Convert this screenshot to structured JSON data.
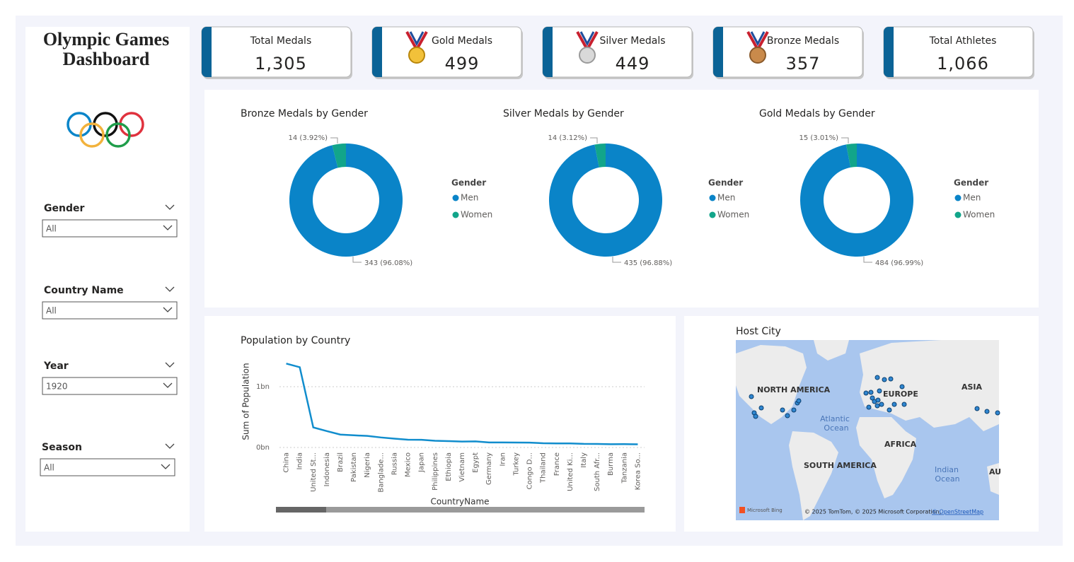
{
  "header": {
    "title": "Olympic Games Dashboard"
  },
  "kpis": [
    {
      "label": "Total Medals",
      "value": "1,305"
    },
    {
      "label": "Gold Medals",
      "value": "499"
    },
    {
      "label": "Silver Medals",
      "value": "449"
    },
    {
      "label": "Bronze Medals",
      "value": "357"
    },
    {
      "label": "Total Athletes",
      "value": "1,066"
    }
  ],
  "filters": [
    {
      "label": "Gender",
      "value": "All"
    },
    {
      "label": "Country Name",
      "value": "All"
    },
    {
      "label": "Year",
      "value": "1920"
    },
    {
      "label": "Season",
      "value": "All"
    }
  ],
  "chart_data": [
    {
      "type": "pie",
      "title": "Bronze Medals by Gender",
      "legend_title": "Gender",
      "categories": [
        "Men",
        "Women"
      ],
      "values": [
        343,
        14
      ],
      "value_labels": [
        "343 (96.08%)",
        "14 (3.92%)"
      ],
      "colors": [
        "#0a84c8",
        "#12a58a"
      ]
    },
    {
      "type": "pie",
      "title": "Silver Medals by Gender",
      "legend_title": "Gender",
      "categories": [
        "Men",
        "Women"
      ],
      "values": [
        435,
        14
      ],
      "value_labels": [
        "435 (96.88%)",
        "14 (3.12%)"
      ],
      "colors": [
        "#0a84c8",
        "#12a58a"
      ]
    },
    {
      "type": "pie",
      "title": "Gold Medals by Gender",
      "legend_title": "Gender",
      "categories": [
        "Men",
        "Women"
      ],
      "values": [
        484,
        15
      ],
      "value_labels": [
        "484 (96.99%)",
        "15 (3.01%)"
      ],
      "colors": [
        "#0a84c8",
        "#12a58a"
      ]
    },
    {
      "type": "line",
      "title": "Population by Country",
      "x_label": "CountryName",
      "y_label": "Sum of Population",
      "categories": [
        "China",
        "India",
        "United St...",
        "Indonesia",
        "Brazil",
        "Pakistan",
        "Nigeria",
        "Banglade...",
        "Russia",
        "Mexico",
        "Japan",
        "Philippines",
        "Ethiopia",
        "Vietnam",
        "Egypt",
        "Germany",
        "Iran",
        "Turkey",
        "Congo D...",
        "Thailand",
        "France",
        "United Ki...",
        "Italy",
        "South Afr...",
        "Burma",
        "Tanzania",
        "Korea So..."
      ],
      "values": [
        1380000000,
        1320000000,
        330000000,
        270000000,
        212000000,
        200000000,
        190000000,
        165000000,
        145000000,
        128000000,
        126000000,
        110000000,
        105000000,
        97000000,
        100000000,
        83000000,
        83000000,
        82000000,
        80000000,
        70000000,
        67000000,
        67000000,
        60000000,
        58000000,
        54000000,
        55000000,
        52000000
      ],
      "color": "#118dcd",
      "ylim": [
        0,
        1430000000
      ],
      "yticks": [
        {
          "value": 0,
          "label": "0bn"
        },
        {
          "value": 1000000000,
          "label": "1bn"
        }
      ],
      "grid": true
    }
  ],
  "map": {
    "title": "Host City",
    "labels": [
      "NORTH AMERICA",
      "EUROPE",
      "ASIA",
      "AFRICA",
      "SOUTH AMERICA",
      "Atlantic",
      "Ocean",
      "Indian",
      "Ocean",
      "AU"
    ],
    "logo": "Microsoft Bing",
    "attribution": "© 2025 TomTom, © 2025 Microsoft Corporation,",
    "attribution_link": "© OpenStreetMap"
  }
}
